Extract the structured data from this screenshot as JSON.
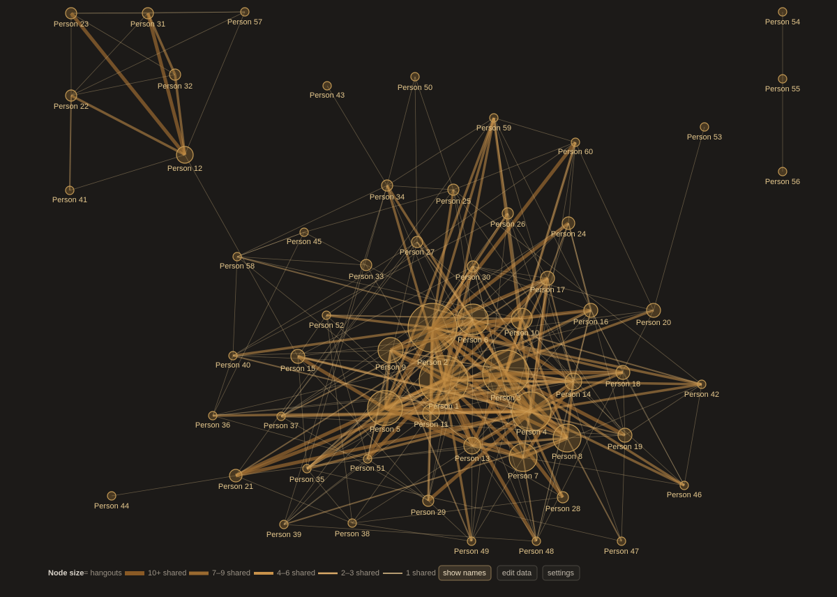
{
  "nodes": [
    {
      "label": "Person 1"
    },
    {
      "label": "Person 2"
    },
    {
      "label": "Person 3"
    },
    {
      "label": "Person 4"
    },
    {
      "label": "Person 5"
    },
    {
      "label": "Person 6"
    },
    {
      "label": "Person 7"
    },
    {
      "label": "Person 8"
    },
    {
      "label": "Person 9"
    },
    {
      "label": "Person 10"
    },
    {
      "label": "Person 11"
    },
    {
      "label": "Person 12"
    },
    {
      "label": "Person 13"
    },
    {
      "label": "Person 14"
    },
    {
      "label": "Person 15"
    },
    {
      "label": "Person 16"
    },
    {
      "label": "Person 17"
    },
    {
      "label": "Person 18"
    },
    {
      "label": "Person 19"
    },
    {
      "label": "Person 20"
    },
    {
      "label": "Person 21"
    },
    {
      "label": "Person 22"
    },
    {
      "label": "Person 23"
    },
    {
      "label": "Person 24"
    },
    {
      "label": "Person 25"
    },
    {
      "label": "Person 26"
    },
    {
      "label": "Person 27"
    },
    {
      "label": "Person 28"
    },
    {
      "label": "Person 29"
    },
    {
      "label": "Person 30"
    },
    {
      "label": "Person 31"
    },
    {
      "label": "Person 32"
    },
    {
      "label": "Person 33"
    },
    {
      "label": "Person 34"
    },
    {
      "label": "Person 35"
    },
    {
      "label": "Person 36"
    },
    {
      "label": "Person 37"
    },
    {
      "label": "Person 38"
    },
    {
      "label": "Person 39"
    },
    {
      "label": "Person 40"
    },
    {
      "label": "Person 41"
    },
    {
      "label": "Person 42"
    },
    {
      "label": "Person 43"
    },
    {
      "label": "Person 44"
    },
    {
      "label": "Person 45"
    },
    {
      "label": "Person 46"
    },
    {
      "label": "Person 47"
    },
    {
      "label": "Person 48"
    },
    {
      "label": "Person 49"
    },
    {
      "label": "Person 50"
    },
    {
      "label": "Person 51"
    },
    {
      "label": "Person 52"
    },
    {
      "label": "Person 53"
    },
    {
      "label": "Person 54"
    },
    {
      "label": "Person 55"
    },
    {
      "label": "Person 56"
    },
    {
      "label": "Person 57"
    },
    {
      "label": "Person 58"
    },
    {
      "label": "Person 59"
    },
    {
      "label": "Person 60"
    }
  ],
  "legend": {
    "title": "Node size",
    "title_suffix": "= hangouts",
    "items": [
      "10+ shared",
      "7–9 shared",
      "4–6 shared",
      "2–3 shared",
      "1 shared"
    ]
  },
  "buttons": [
    "show names",
    "edit data",
    "settings"
  ]
}
